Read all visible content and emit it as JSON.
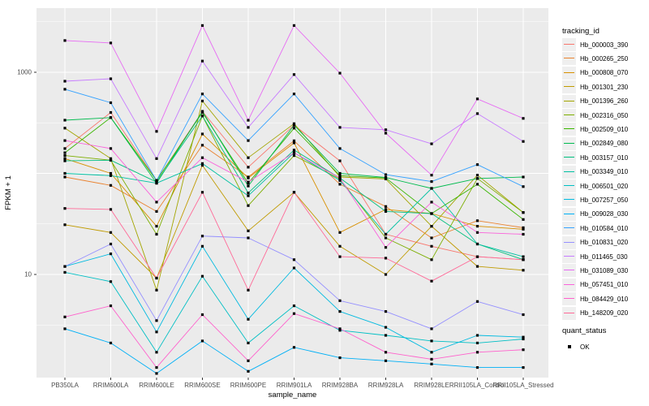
{
  "figure": {
    "background": "#ffffff",
    "panel_background": "#ebebeb",
    "grid_color": "#ffffff",
    "tick_text_color": "#4d4d4d",
    "point_color": "#000000",
    "legend_key_background": "#efefef"
  },
  "chart_data": {
    "type": "line",
    "title": "",
    "xlabel": "sample_name",
    "ylabel": "FPKM + 1",
    "y_scale": "log10",
    "ylim": [
      1,
      4300
    ],
    "y_tick_values": [
      1000,
      10
    ],
    "y_tick_labels": [
      "1000",
      "10"
    ],
    "grid": "white major and minor gridlines on gray panel",
    "legend_position": "right",
    "legend_tracking_title": "tracking_id",
    "legend_quant_title": "quant_status",
    "quant_status_items": [
      "OK"
    ],
    "point_shape": "small black square",
    "categories": [
      "PB350LA",
      "RRIM600LA",
      "RRIM600LE",
      "RRIM600SE",
      "RRIM600PE",
      "RRIM901LA",
      "RRIM928BA",
      "RRIM928LA",
      "RRIM928LE",
      "RRII105LA_Control",
      "RRII105LA_Stressed"
    ],
    "series": [
      {
        "name": "Hb_000003_390",
        "color": "#F8766D",
        "values": [
          176,
          400,
          85,
          410,
          115,
          300,
          133,
          25,
          19,
          15,
          14
        ]
      },
      {
        "name": "Hb_000265_250",
        "color": "#EA8331",
        "values": [
          92,
          76,
          42,
          190,
          92,
          210,
          78,
          47,
          23,
          34,
          29
        ]
      },
      {
        "name": "Hb_000808_070",
        "color": "#D89000",
        "values": [
          140,
          100,
          30,
          245,
          90,
          200,
          26,
          44,
          40,
          30,
          28
        ]
      },
      {
        "name": "Hb_001301_230",
        "color": "#C09B00",
        "values": [
          31,
          26,
          9.2,
          120,
          27,
          65,
          19,
          10,
          30,
          12,
          11
        ]
      },
      {
        "name": "Hb_001396_260",
        "color": "#A3A500",
        "values": [
          280,
          140,
          7,
          520,
          143,
          310,
          92,
          88,
          30,
          96,
          41
        ]
      },
      {
        "name": "Hb_002316_050",
        "color": "#7CAE00",
        "values": [
          150,
          135,
          25,
          370,
          48,
          150,
          88,
          23,
          14,
          89,
          41
        ]
      },
      {
        "name": "Hb_002509_010",
        "color": "#39B600",
        "values": [
          160,
          356,
          85,
          400,
          80,
          280,
          95,
          90,
          40,
          78,
          35
        ]
      },
      {
        "name": "Hb_002849_080",
        "color": "#00BB4E",
        "values": [
          336,
          356,
          80,
          410,
          75,
          300,
          100,
          91,
          71,
          89,
          92
        ]
      },
      {
        "name": "Hb_003157_010",
        "color": "#00BF7D",
        "values": [
          133,
          135,
          82,
          370,
          64,
          170,
          90,
          42,
          40,
          20,
          14
        ]
      },
      {
        "name": "Hb_003349_010",
        "color": "#00C1A3",
        "values": [
          100,
          95,
          80,
          125,
          60,
          160,
          85,
          25,
          71,
          20,
          15
        ]
      },
      {
        "name": "Hb_006501_020",
        "color": "#00BFC4",
        "values": [
          10.5,
          8.5,
          1.7,
          9.6,
          2.1,
          4.9,
          2.8,
          2.5,
          2.2,
          2.1,
          2.3
        ]
      },
      {
        "name": "Hb_007257_050",
        "color": "#00BAE0",
        "values": [
          12,
          16,
          2.7,
          19,
          3.6,
          11.6,
          4.3,
          3,
          1.7,
          2.5,
          2.4
        ]
      },
      {
        "name": "Hb_009028_030",
        "color": "#00B0F6",
        "values": [
          2.9,
          2.1,
          1.05,
          2.2,
          1.1,
          1.9,
          1.5,
          1.4,
          1.3,
          1.2,
          1.2
        ]
      },
      {
        "name": "Hb_010584_010",
        "color": "#35A2FF",
        "values": [
          680,
          500,
          85,
          610,
          211,
          610,
          176,
          97,
          83,
          122,
          74
        ]
      },
      {
        "name": "Hb_010831_020",
        "color": "#9590FF",
        "values": [
          12,
          20,
          3.5,
          24,
          23,
          14,
          5.5,
          4.3,
          2.9,
          5.4,
          4
        ]
      },
      {
        "name": "Hb_011465_030",
        "color": "#C77CFF",
        "values": [
          816,
          863,
          140,
          1290,
          285,
          950,
          285,
          270,
          196,
          390,
          207
        ]
      },
      {
        "name": "Hb_031089_030",
        "color": "#E76BF3",
        "values": [
          2060,
          1950,
          260,
          2900,
          335,
          2900,
          980,
          250,
          96,
          545,
          350
        ]
      },
      {
        "name": "Hb_057451_010",
        "color": "#FA62DB",
        "values": [
          211,
          176,
          52,
          143,
          82,
          160,
          90,
          18.5,
          52,
          26,
          25
        ]
      },
      {
        "name": "Hb_084429_010",
        "color": "#FF61CC",
        "values": [
          3.8,
          4.9,
          1.2,
          4,
          1.4,
          4.1,
          2.9,
          1.7,
          1.45,
          1.7,
          1.8
        ]
      },
      {
        "name": "Hb_148209_020",
        "color": "#FF6A98",
        "values": [
          45,
          44,
          9.2,
          65,
          7,
          65,
          15,
          14.5,
          8.6,
          15,
          14
        ]
      }
    ]
  }
}
